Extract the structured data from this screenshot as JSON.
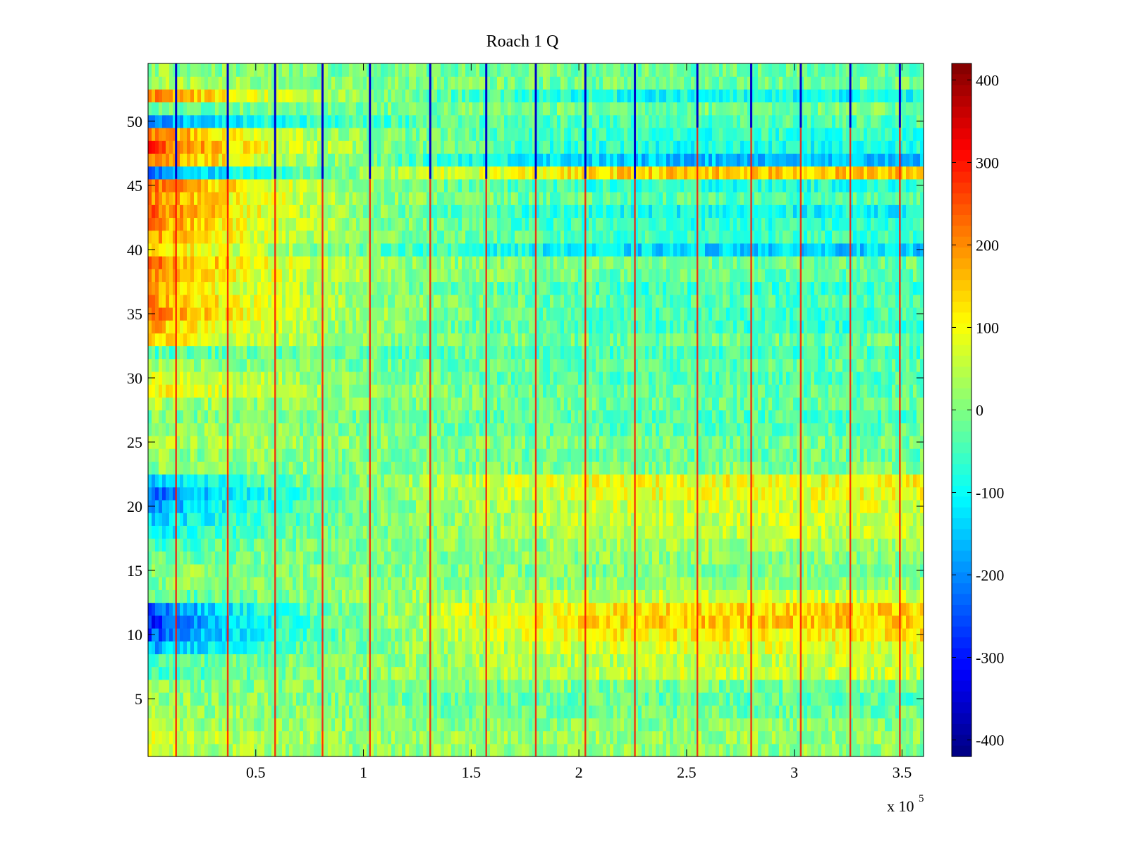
{
  "chart_data": {
    "type": "heatmap",
    "title": "Roach 1 Q",
    "xlabel": "",
    "ylabel": "",
    "x_range": [
      0,
      360000
    ],
    "y_range": [
      0.5,
      54.5
    ],
    "n_rows": 54,
    "x_exponent_label": "x 10",
    "x_exponent_power": "5",
    "x_ticks": [
      {
        "value": 0.5,
        "label": "0.5"
      },
      {
        "value": 1,
        "label": "1"
      },
      {
        "value": 1.5,
        "label": "1.5"
      },
      {
        "value": 2,
        "label": "2"
      },
      {
        "value": 2.5,
        "label": "2.5"
      },
      {
        "value": 3,
        "label": "3"
      },
      {
        "value": 3.5,
        "label": "3.5"
      }
    ],
    "y_ticks": [
      {
        "value": 5,
        "label": "5"
      },
      {
        "value": 10,
        "label": "10"
      },
      {
        "value": 15,
        "label": "15"
      },
      {
        "value": 20,
        "label": "20"
      },
      {
        "value": 25,
        "label": "25"
      },
      {
        "value": 30,
        "label": "30"
      },
      {
        "value": 35,
        "label": "35"
      },
      {
        "value": 40,
        "label": "40"
      },
      {
        "value": 45,
        "label": "45"
      },
      {
        "value": 50,
        "label": "50"
      }
    ],
    "colorbar": {
      "colormap": "jet",
      "range": [
        -420,
        420
      ],
      "ticks": [
        {
          "value": 400,
          "label": "400"
        },
        {
          "value": 300,
          "label": "300"
        },
        {
          "value": 200,
          "label": "200"
        },
        {
          "value": 100,
          "label": "100"
        },
        {
          "value": 0,
          "label": "0"
        },
        {
          "value": -100,
          "label": "-100"
        },
        {
          "value": -200,
          "label": "-200"
        },
        {
          "value": -300,
          "label": "-300"
        },
        {
          "value": -400,
          "label": "-400"
        }
      ]
    },
    "vertical_events_x": [
      0.13,
      0.37,
      0.59,
      0.81,
      1.03,
      1.31,
      1.57,
      1.8,
      2.03,
      2.26,
      2.55,
      2.8,
      3.03,
      3.26,
      3.49
    ],
    "row_profiles": [
      {
        "row": 1,
        "early": 60,
        "late": 10
      },
      {
        "row": 2,
        "early": 90,
        "late": 20
      },
      {
        "row": 3,
        "early": 40,
        "late": 0
      },
      {
        "row": 4,
        "early": 30,
        "late": -20
      },
      {
        "row": 5,
        "early": 20,
        "late": -30
      },
      {
        "row": 6,
        "early": 10,
        "late": -10
      },
      {
        "row": 7,
        "early": -60,
        "late": 60
      },
      {
        "row": 8,
        "early": -40,
        "late": 50
      },
      {
        "row": 9,
        "early": -180,
        "late": 80
      },
      {
        "row": 10,
        "early": -260,
        "late": 120
      },
      {
        "row": 11,
        "early": -300,
        "late": 150
      },
      {
        "row": 12,
        "early": -240,
        "late": 140
      },
      {
        "row": 13,
        "early": -40,
        "late": 60
      },
      {
        "row": 14,
        "early": 0,
        "late": 20
      },
      {
        "row": 15,
        "early": 20,
        "late": 0
      },
      {
        "row": 16,
        "early": -20,
        "late": 10
      },
      {
        "row": 17,
        "early": -60,
        "late": 30
      },
      {
        "row": 18,
        "early": -120,
        "late": 50
      },
      {
        "row": 19,
        "early": -150,
        "late": 60
      },
      {
        "row": 20,
        "early": -200,
        "late": 70
      },
      {
        "row": 21,
        "early": -240,
        "late": 90
      },
      {
        "row": 22,
        "early": -160,
        "late": 100
      },
      {
        "row": 23,
        "early": 10,
        "late": 0
      },
      {
        "row": 24,
        "early": 20,
        "late": -20
      },
      {
        "row": 25,
        "early": 60,
        "late": -10
      },
      {
        "row": 26,
        "early": 30,
        "late": -30
      },
      {
        "row": 27,
        "early": 0,
        "late": -40
      },
      {
        "row": 28,
        "early": 40,
        "late": -20
      },
      {
        "row": 29,
        "early": 130,
        "late": -30
      },
      {
        "row": 30,
        "early": 100,
        "late": -40
      },
      {
        "row": 31,
        "early": 20,
        "late": -30
      },
      {
        "row": 32,
        "early": -40,
        "late": -50
      },
      {
        "row": 33,
        "early": 140,
        "late": -20
      },
      {
        "row": 34,
        "early": 170,
        "late": -60
      },
      {
        "row": 35,
        "early": 220,
        "late": -50
      },
      {
        "row": 36,
        "early": 200,
        "late": -40
      },
      {
        "row": 37,
        "early": 180,
        "late": -60
      },
      {
        "row": 38,
        "early": 220,
        "late": -30
      },
      {
        "row": 39,
        "early": 230,
        "late": -20
      },
      {
        "row": 40,
        "early": 160,
        "late": -140
      },
      {
        "row": 41,
        "early": 190,
        "late": -60
      },
      {
        "row": 42,
        "early": 210,
        "late": -70
      },
      {
        "row": 43,
        "early": 240,
        "late": -100
      },
      {
        "row": 44,
        "early": 210,
        "late": -40
      },
      {
        "row": 45,
        "early": 250,
        "late": -80
      },
      {
        "row": 46,
        "early": -220,
        "late": 150
      },
      {
        "row": 47,
        "early": 230,
        "late": -160
      },
      {
        "row": 48,
        "early": 270,
        "late": -90
      },
      {
        "row": 49,
        "early": 220,
        "late": -70
      },
      {
        "row": 50,
        "early": -200,
        "late": -40
      },
      {
        "row": 51,
        "early": -20,
        "late": -10
      },
      {
        "row": 52,
        "early": 220,
        "late": -100
      },
      {
        "row": 53,
        "early": 40,
        "late": -10
      },
      {
        "row": 54,
        "early": 10,
        "late": -20
      }
    ]
  }
}
